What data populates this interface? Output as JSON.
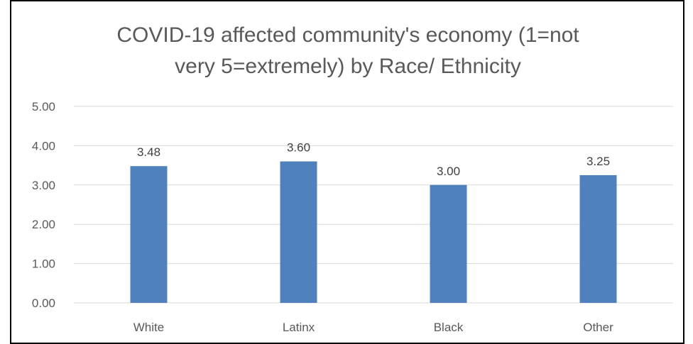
{
  "chart_data": {
    "type": "bar",
    "title": "COVID-19 affected community's economy (1=not very 5=extremely) by Race/ Ethnicity",
    "xlabel": "",
    "ylabel": "",
    "categories": [
      "White",
      "Latinx",
      "Black",
      "Other"
    ],
    "values": [
      3.48,
      3.6,
      3.0,
      3.25
    ],
    "data_labels": [
      "3.48",
      "3.60",
      "3.00",
      "3.25"
    ],
    "ylim": [
      0,
      5
    ],
    "y_ticks": [
      0,
      1,
      2,
      3,
      4,
      5
    ],
    "y_tick_labels": [
      "0.00",
      "1.00",
      "2.00",
      "3.00",
      "4.00",
      "5.00"
    ],
    "grid": true,
    "legend": "none",
    "bar_color": "#4F81BD",
    "gridline_color": "#D9D9D9"
  }
}
